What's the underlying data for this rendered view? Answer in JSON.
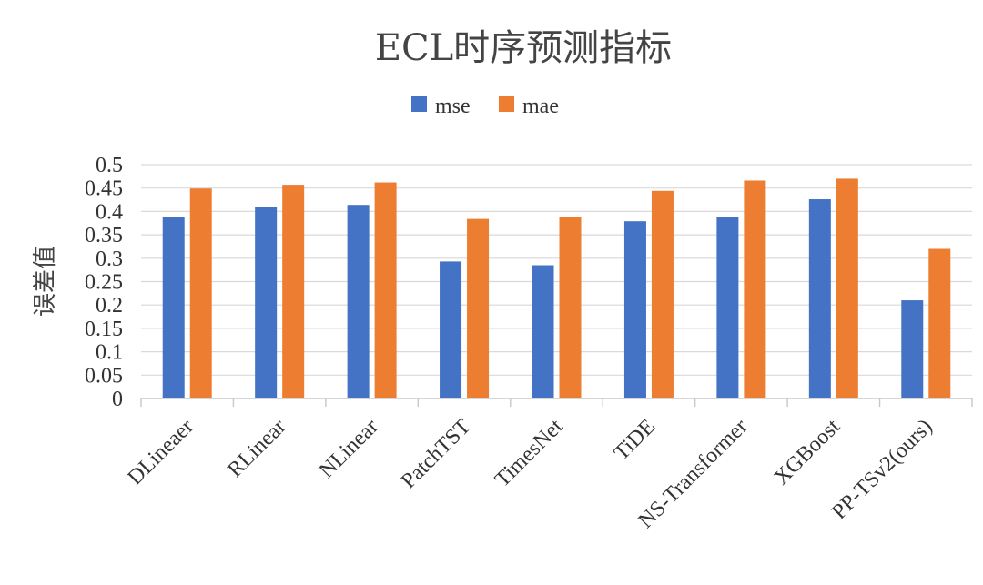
{
  "chart_data": {
    "type": "bar",
    "title": "ECL时序预测指标",
    "ylabel": "误差值",
    "xlabel": "",
    "ylim": [
      0,
      0.5
    ],
    "yticks": [
      "0",
      "0.05",
      "0.1",
      "0.15",
      "0.2",
      "0.25",
      "0.3",
      "0.35",
      "0.4",
      "0.45",
      "0.5"
    ],
    "categories": [
      "DLineaer",
      "RLinear",
      "NLinear",
      "PatchTST",
      "TimesNet",
      "TiDE",
      "NS-Transformer",
      "XGBoost",
      "PP-TSv2(ours)"
    ],
    "series": [
      {
        "name": "mse",
        "color": "#4472C4",
        "values": [
          0.388,
          0.41,
          0.414,
          0.293,
          0.285,
          0.379,
          0.388,
          0.426,
          0.21
        ]
      },
      {
        "name": "mae",
        "color": "#ED7D31",
        "values": [
          0.449,
          0.457,
          0.462,
          0.384,
          0.388,
          0.444,
          0.466,
          0.47,
          0.32
        ]
      }
    ],
    "legend_position": "top",
    "grid": true
  }
}
